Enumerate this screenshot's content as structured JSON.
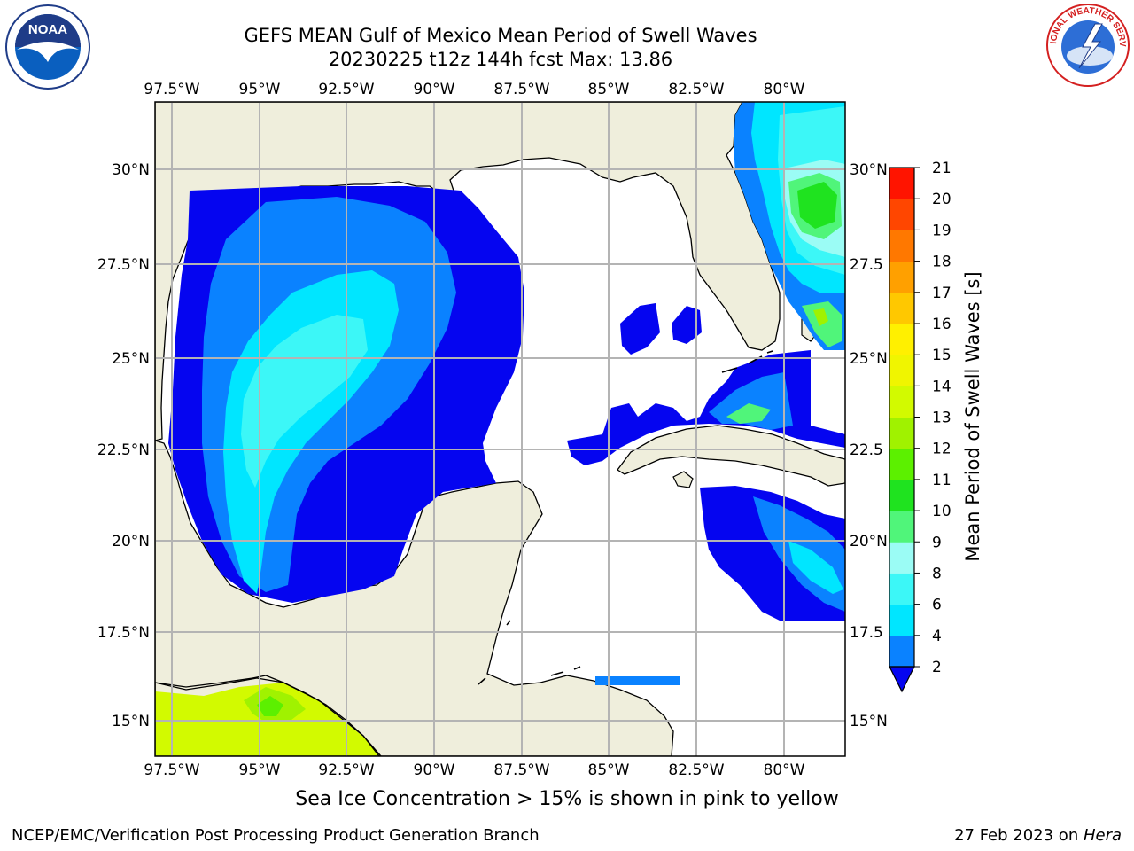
{
  "header": {
    "title_line1": "GEFS MEAN Gulf of Mexico Mean Period of Swell Waves",
    "title_line2": "20230225 t12z 144h fcst   Max: 13.86"
  },
  "logos": {
    "noaa": {
      "text": "NOAA",
      "icon": "noaa-seagull-logo"
    },
    "nws": {
      "text": "NATIONAL WEATHER SERVICE",
      "icon": "nws-logo"
    }
  },
  "map": {
    "lon_labels": [
      "97.5°W",
      "95°W",
      "92.5°W",
      "90°W",
      "87.5°W",
      "85°W",
      "82.5°W",
      "80°W"
    ],
    "lat_labels_left": [
      "30°N",
      "27.5°N",
      "25°N",
      "22.5°N",
      "20°N",
      "17.5°N",
      "15°N"
    ],
    "lat_labels_right": [
      "30°N",
      "27.5",
      "25°N",
      "22.5",
      "20°N",
      "17.5",
      "15°N"
    ],
    "colors": {
      "land": "#efeedc",
      "grid": "#b4b4b4",
      "coast": "#000000"
    }
  },
  "colorbar": {
    "label": "Mean Period of Swell Waves [s]",
    "ticks": [
      "2",
      "4",
      "6",
      "8",
      "9",
      "10",
      "11",
      "12",
      "13",
      "14",
      "15",
      "16",
      "17",
      "18",
      "19",
      "20",
      "21"
    ],
    "colors": [
      "#0505f0",
      "#0a82ff",
      "#00e6ff",
      "#3cf7f7",
      "#9bfcf5",
      "#50f57a",
      "#1fe31f",
      "#5cf000",
      "#a0f200",
      "#d2fa00",
      "#f0f500",
      "#fff000",
      "#ffc800",
      "#ffa000",
      "#ff7800",
      "#ff4600",
      "#ff1400",
      "#ff0000"
    ]
  },
  "footer": {
    "sea_ice_note": "Sea Ice Concentration > 15% is shown in pink to yellow",
    "credit": "NCEP/EMC/Verification Post Processing Product Generation Branch",
    "date_prefix": "27 Feb 2023 on ",
    "date_host": "Hera"
  }
}
